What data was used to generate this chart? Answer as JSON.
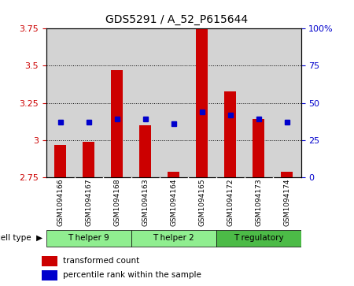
{
  "title": "GDS5291 / A_52_P615644",
  "samples": [
    "GSM1094166",
    "GSM1094167",
    "GSM1094168",
    "GSM1094163",
    "GSM1094164",
    "GSM1094165",
    "GSM1094172",
    "GSM1094173",
    "GSM1094174"
  ],
  "red_values": [
    2.97,
    2.99,
    3.47,
    3.1,
    2.79,
    3.75,
    3.33,
    3.14,
    2.79
  ],
  "blue_values": [
    3.12,
    3.12,
    3.14,
    3.14,
    3.11,
    3.19,
    3.17,
    3.14,
    3.12
  ],
  "bar_bottom": 2.75,
  "ylim_left": [
    2.75,
    3.75
  ],
  "ylim_right": [
    0,
    100
  ],
  "yticks_left": [
    2.75,
    3.0,
    3.25,
    3.5,
    3.75
  ],
  "ytick_labels_left": [
    "2.75",
    "3",
    "3.25",
    "3.5",
    "3.75"
  ],
  "yticks_right": [
    0,
    25,
    50,
    75,
    100
  ],
  "ytick_labels_right": [
    "0",
    "25",
    "50",
    "75",
    "100%"
  ],
  "cell_type_groups": [
    {
      "label": "T helper 9",
      "start": 0,
      "end": 3,
      "color": "#90EE90"
    },
    {
      "label": "T helper 2",
      "start": 3,
      "end": 6,
      "color": "#90EE90"
    },
    {
      "label": "T regulatory",
      "start": 6,
      "end": 9,
      "color": "#4CBB47"
    }
  ],
  "red_color": "#CC0000",
  "blue_color": "#0000CC",
  "bar_bg": "#D3D3D3",
  "legend_red": "transformed count",
  "legend_blue": "percentile rank within the sample"
}
